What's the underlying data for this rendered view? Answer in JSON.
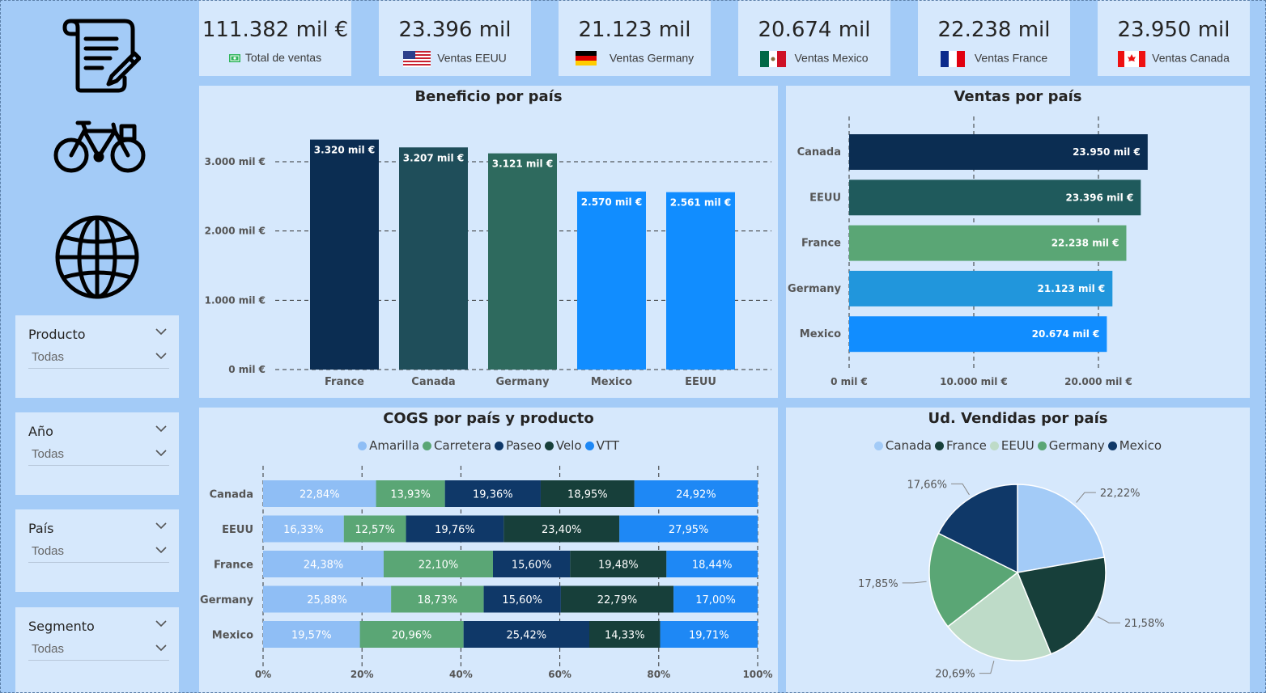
{
  "kpis": [
    {
      "value": "111.382 mil €",
      "label": "Total de ventas",
      "icon": "money-icon"
    },
    {
      "value": "23.396 mil",
      "label": "Ventas EEUU",
      "icon": "usa-flag-icon"
    },
    {
      "value": "21.123 mil",
      "label": "Ventas Germany",
      "icon": "germany-flag-icon"
    },
    {
      "value": "20.674 mil",
      "label": "Ventas Mexico",
      "icon": "mexico-flag-icon"
    },
    {
      "value": "22.238 mil",
      "label": "Ventas France",
      "icon": "france-flag-icon"
    },
    {
      "value": "23.950 mil",
      "label": "Ventas Canada",
      "icon": "canada-flag-icon"
    }
  ],
  "sidebar": {
    "icons": [
      "document-pencil-icon",
      "bicycle-icon",
      "globe-icon"
    ],
    "slicers": [
      {
        "title": "Producto",
        "value": "Todas"
      },
      {
        "title": "Año",
        "value": "Todas"
      },
      {
        "title": "País",
        "value": "Todas"
      },
      {
        "title": "Segmento",
        "value": "Todas"
      }
    ]
  },
  "colors": {
    "navy": "#0b2d52",
    "darkteal": "#1f4e5a",
    "teal": "#2e6a5e",
    "blue": "#118dff",
    "green": "#5aa675",
    "lightblue": "#a3cbf7",
    "paleGreen": "#bedbc8",
    "dark": "#173f3a",
    "medblue": "#1f8fda"
  },
  "chart_data": [
    {
      "id": "beneficio",
      "type": "bar",
      "title": "Beneficio por país",
      "categories": [
        "France",
        "Canada",
        "Germany",
        "Mexico",
        "EEUU"
      ],
      "values": [
        3320,
        3207,
        3121,
        2570,
        2561
      ],
      "data_labels": [
        "3.320 mil €",
        "3.207 mil €",
        "3.121 mil €",
        "2.570 mil €",
        "2.561 mil €"
      ],
      "colors": [
        "#0b2d52",
        "#1f4e5a",
        "#2e6a5e",
        "#118dff",
        "#118dff"
      ],
      "yticks": [
        "0 mil €",
        "1.000 mil €",
        "2.000 mil €",
        "3.000 mil €"
      ],
      "ylim": [
        0,
        3500
      ],
      "grid": true
    },
    {
      "id": "ventas",
      "type": "bar",
      "orientation": "horizontal",
      "title": "Ventas por país",
      "categories": [
        "Canada",
        "EEUU",
        "France",
        "Germany",
        "Mexico"
      ],
      "values": [
        23950,
        23396,
        22238,
        21123,
        20674
      ],
      "data_labels": [
        "23.950 mil €",
        "23.396 mil €",
        "22.238 mil €",
        "21.123 mil €",
        "20.674 mil €"
      ],
      "colors": [
        "#0b2d52",
        "#1f5a5c",
        "#5aa675",
        "#2196dc",
        "#118dff"
      ],
      "xticks": [
        "0 mil €",
        "10.000 mil €",
        "20.000 mil €"
      ],
      "xlim": [
        0,
        25000
      ],
      "grid": true
    },
    {
      "id": "cogs",
      "type": "bar",
      "stacked": "100%",
      "orientation": "horizontal",
      "title": "COGS por país y producto",
      "categories": [
        "Canada",
        "EEUU",
        "France",
        "Germany",
        "Mexico"
      ],
      "series": [
        {
          "name": "Amarilla",
          "color": "#8fbef5",
          "values": [
            22.84,
            16.33,
            24.38,
            25.88,
            19.57
          ],
          "labels": [
            "22,84%",
            "16,33%",
            "24,38%",
            "25,88%",
            "19,57%"
          ]
        },
        {
          "name": "Carretera",
          "color": "#5aa675",
          "values": [
            13.93,
            12.57,
            22.1,
            18.73,
            20.96
          ],
          "labels": [
            "13,93%",
            "12,57%",
            "22,10%",
            "18,73%",
            "20,96%"
          ]
        },
        {
          "name": "Paseo",
          "color": "#0f3868",
          "values": [
            19.36,
            19.76,
            15.6,
            15.6,
            25.42
          ],
          "labels": [
            "19,36%",
            "19,76%",
            "15,60%",
            "15,60%",
            "25,42%"
          ]
        },
        {
          "name": "Velo",
          "color": "#173f3a",
          "values": [
            18.95,
            23.4,
            19.48,
            22.79,
            14.33
          ],
          "labels": [
            "18,95%",
            "23,40%",
            "19,48%",
            "22,79%",
            "14,33%"
          ]
        },
        {
          "name": "VTT",
          "color": "#1e88f5",
          "values": [
            24.92,
            27.95,
            18.44,
            17.0,
            19.71
          ],
          "labels": [
            "24,92%",
            "27,95%",
            "18,44%",
            "17,00%",
            "19,71%"
          ]
        }
      ],
      "xticks": [
        "0%",
        "20%",
        "40%",
        "60%",
        "80%",
        "100%"
      ],
      "legend": "top-center",
      "grid": true
    },
    {
      "id": "unidades",
      "type": "pie",
      "title": "Ud. Vendidas por país",
      "categories": [
        "Canada",
        "France",
        "EEUU",
        "Germany",
        "Mexico"
      ],
      "values": [
        22.22,
        21.58,
        20.69,
        17.85,
        17.66
      ],
      "data_labels": [
        "22,22%",
        "21,58%",
        "20,69%",
        "17,85%",
        "17,66%"
      ],
      "colors": [
        "#a3cbf7",
        "#173f3a",
        "#bedbc8",
        "#5aa675",
        "#0f3868"
      ],
      "legend": "top-center"
    }
  ]
}
